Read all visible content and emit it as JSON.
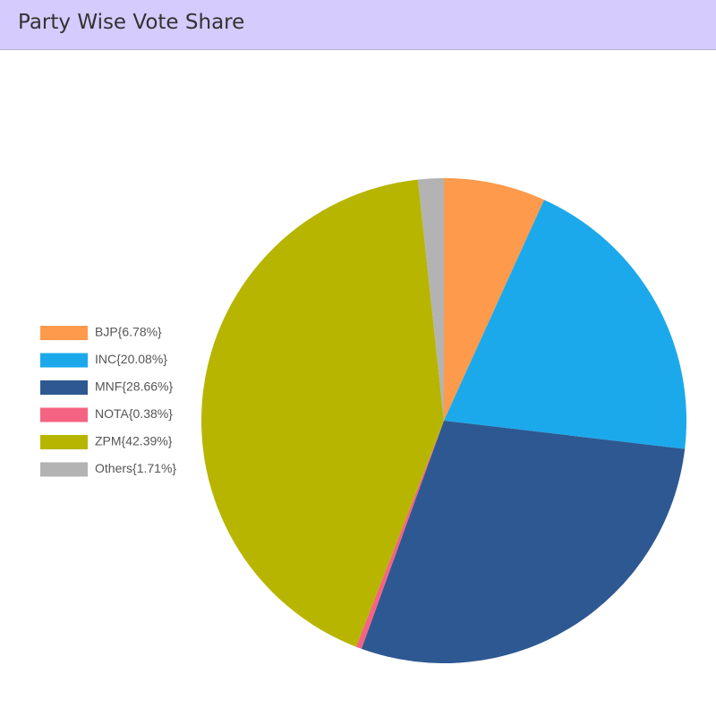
{
  "header": {
    "title": "Party Wise Vote Share"
  },
  "chart_data": {
    "type": "pie",
    "categories": [
      "BJP{6.78%}",
      "INC{20.08%}",
      "MNF{28.66%}",
      "NOTA{0.38%}",
      "ZPM{42.39%}",
      "Others{1.71%}"
    ],
    "values": [
      6.78,
      20.08,
      28.66,
      0.38,
      42.39,
      1.71
    ],
    "colors": [
      "#fd9a4c",
      "#1ba9eb",
      "#2e5891",
      "#f56382",
      "#b7b500",
      "#b3b3b3"
    ],
    "legend": "left"
  }
}
